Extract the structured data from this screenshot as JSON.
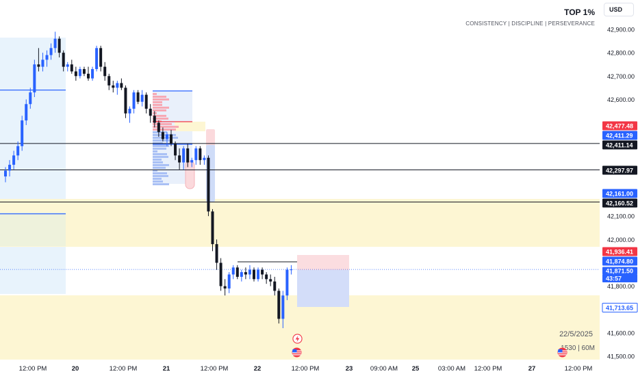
{
  "header": {
    "title": "TOP 1%",
    "subtitle": "CONSISTENCY  |  DISCIPLINE  |  PERSEVERANCE",
    "currency": "USD"
  },
  "session": {
    "date": "22/5/2025",
    "timeframe": "1530  |  60M"
  },
  "colors": {
    "up_candle": "#2962ff",
    "down_candle": "#131722",
    "zone_yellow": "#fdf6d3",
    "zone_blue": "#e8f3fc",
    "level_blue": "#2962ff",
    "level_black": "#131722",
    "label_red": "#f23645",
    "label_blue": "#2962ff",
    "label_black": "#131722"
  },
  "icons": {
    "lightning": "lightning-event-icon",
    "flag_us": "us-flag-icon"
  },
  "chart_data": {
    "type": "candlestick",
    "ylim": [
      41470,
      42990
    ],
    "y_ticks": [
      "42,900.00",
      "42,800.00",
      "42,700.00",
      "42,600.00",
      "42,100.00",
      "42,000.00",
      "41,800.00",
      "41,600.00",
      "41,500.00"
    ],
    "y_tick_values": [
      42900,
      42800,
      42700,
      42600,
      42100,
      42000,
      41800,
      41600,
      41500
    ],
    "x_ticks": [
      "12:00 PM",
      "20",
      "12:00 PM",
      "21",
      "12:00 PM",
      "22",
      "12:00 PM",
      "23",
      "09:00 AM",
      "25",
      "03:00 AM",
      "12:00 PM",
      "27",
      "12:00 PM"
    ],
    "x_tick_bold": [
      false,
      true,
      false,
      true,
      false,
      true,
      false,
      true,
      false,
      true,
      false,
      false,
      true,
      false
    ],
    "price_labels": [
      {
        "text": "42,477.48",
        "value": 42477.48,
        "style": "red"
      },
      {
        "text": "42,411.29",
        "value": 42411.29,
        "style": "blue"
      },
      {
        "text": "42,411.14",
        "value": 42411.14,
        "style": "black"
      },
      {
        "text": "42,297.97",
        "value": 42297.97,
        "style": "black"
      },
      {
        "text": "42,161.00",
        "value": 42161.0,
        "style": "blue"
      },
      {
        "text": "42,160.52",
        "value": 42160.52,
        "style": "black"
      },
      {
        "text": "41,936.41",
        "value": 41936.41,
        "style": "red"
      },
      {
        "text": "41,874.80",
        "value": 41874.8,
        "style": "blue"
      },
      {
        "text": "41,871.50",
        "value": 41871.5,
        "style": "blue-countdown"
      },
      {
        "text": "43:57",
        "value": 41871.5,
        "style": "countdown"
      },
      {
        "text": "41,713.65",
        "value": 41713.65,
        "style": "blue-outline"
      }
    ],
    "horizontal_levels": [
      {
        "value": 42411.14,
        "color": "black",
        "from": "start"
      },
      {
        "value": 42297.97,
        "color": "black",
        "from": "start"
      },
      {
        "value": 42160.52,
        "color": "black",
        "from": "start"
      },
      {
        "value": 42640,
        "color": "blue",
        "from": "start"
      },
      {
        "value": 42110,
        "color": "blue",
        "from": "start"
      }
    ],
    "candles": [
      [
        42270,
        42310,
        42245,
        42295
      ],
      [
        42295,
        42340,
        42270,
        42320
      ],
      [
        42320,
        42380,
        42300,
        42360
      ],
      [
        42360,
        42420,
        42340,
        42400
      ],
      [
        42400,
        42530,
        42380,
        42510
      ],
      [
        42510,
        42600,
        42490,
        42580
      ],
      [
        42580,
        42650,
        42560,
        42630
      ],
      [
        42630,
        42770,
        42610,
        42750
      ],
      [
        42750,
        42820,
        42720,
        42740
      ],
      [
        42740,
        42800,
        42720,
        42770
      ],
      [
        42770,
        42810,
        42740,
        42790
      ],
      [
        42790,
        42840,
        42770,
        42820
      ],
      [
        42820,
        42890,
        42800,
        42860
      ],
      [
        42860,
        42870,
        42780,
        42800
      ],
      [
        42800,
        42810,
        42720,
        42740
      ],
      [
        42740,
        42760,
        42720,
        42750
      ],
      [
        42750,
        42770,
        42710,
        42720
      ],
      [
        42720,
        42740,
        42680,
        42700
      ],
      [
        42700,
        42740,
        42690,
        42730
      ],
      [
        42730,
        42740,
        42700,
        42710
      ],
      [
        42710,
        42740,
        42680,
        42690
      ],
      [
        42690,
        42740,
        42680,
        42730
      ],
      [
        42730,
        42830,
        42720,
        42820
      ],
      [
        42820,
        42830,
        42720,
        42740
      ],
      [
        42740,
        42760,
        42680,
        42700
      ],
      [
        42700,
        42710,
        42640,
        42660
      ],
      [
        42660,
        42680,
        42630,
        42650
      ],
      [
        42650,
        42680,
        42620,
        42670
      ],
      [
        42670,
        42690,
        42640,
        42650
      ],
      [
        42650,
        42660,
        42520,
        42540
      ],
      [
        42540,
        42570,
        42500,
        42560
      ],
      [
        42560,
        42640,
        42540,
        42630
      ],
      [
        42630,
        42640,
        42580,
        42590
      ],
      [
        42590,
        42640,
        42570,
        42620
      ],
      [
        42620,
        42630,
        42540,
        42560
      ],
      [
        42560,
        42580,
        42500,
        42530
      ],
      [
        42530,
        42550,
        42480,
        42500
      ],
      [
        42500,
        42510,
        42440,
        42460
      ],
      [
        42460,
        42480,
        42420,
        42430
      ],
      [
        42430,
        42460,
        42400,
        42450
      ],
      [
        42450,
        42470,
        42400,
        42410
      ],
      [
        42410,
        42420,
        42340,
        42360
      ],
      [
        42360,
        42390,
        42300,
        42330
      ],
      [
        42330,
        42400,
        42300,
        42390
      ],
      [
        42390,
        42410,
        42310,
        42330
      ],
      [
        42330,
        42350,
        42310,
        42340
      ],
      [
        42340,
        42400,
        42320,
        42390
      ],
      [
        42390,
        42400,
        42320,
        42340
      ],
      [
        42340,
        42360,
        42320,
        42350
      ],
      [
        42350,
        42360,
        42100,
        42120
      ],
      [
        42120,
        42130,
        41950,
        41980
      ],
      [
        41980,
        42000,
        41870,
        41900
      ],
      [
        41900,
        41920,
        41780,
        41800
      ],
      [
        41800,
        41830,
        41760,
        41790
      ],
      [
        41790,
        41860,
        41770,
        41850
      ],
      [
        41850,
        41890,
        41830,
        41880
      ],
      [
        41880,
        41890,
        41830,
        41840
      ],
      [
        41840,
        41870,
        41820,
        41860
      ],
      [
        41860,
        41880,
        41830,
        41850
      ],
      [
        41850,
        41890,
        41830,
        41870
      ],
      [
        41870,
        41880,
        41820,
        41830
      ],
      [
        41830,
        41880,
        41820,
        41870
      ],
      [
        41870,
        41880,
        41830,
        41850
      ],
      [
        41850,
        41860,
        41810,
        41830
      ],
      [
        41830,
        41850,
        41800,
        41820
      ],
      [
        41820,
        41840,
        41760,
        41780
      ],
      [
        41780,
        41790,
        41640,
        41660
      ],
      [
        41660,
        41780,
        41620,
        41760
      ],
      [
        41760,
        41880,
        41740,
        41870
      ],
      [
        41870,
        41890,
        41850,
        41871.5
      ]
    ]
  }
}
